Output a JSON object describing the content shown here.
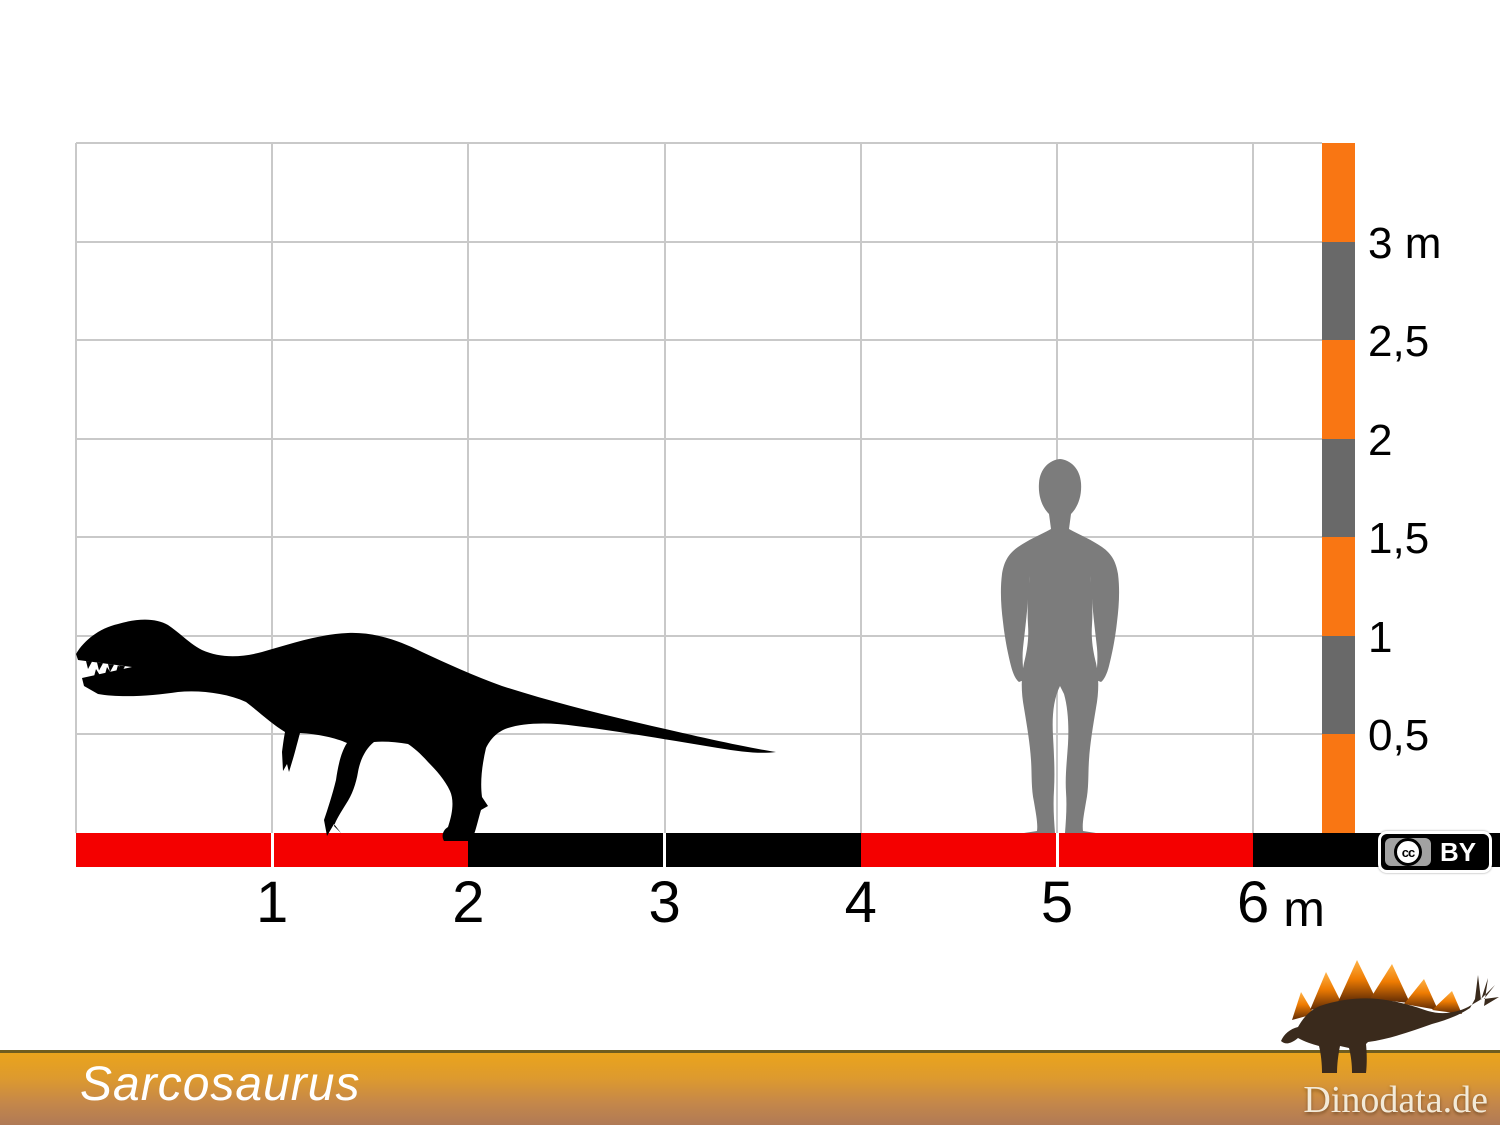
{
  "chart": {
    "x_axis": {
      "tick_values": [
        1,
        2,
        3,
        4,
        5,
        6
      ],
      "tick_labels": [
        "1",
        "2",
        "3",
        "4",
        "5",
        "6"
      ],
      "unit_label": "m"
    },
    "y_axis": {
      "tick_values": [
        3,
        2.5,
        2,
        1.5,
        1,
        0.5
      ],
      "tick_labels": [
        "3 m",
        "2,5",
        "2",
        "1,5",
        "1",
        "0,5"
      ]
    },
    "grid": {
      "x_interval_m": 1,
      "y_interval_m": 0.5,
      "x_range_m": [
        0,
        6.35
      ],
      "y_range_m": [
        0,
        3.5
      ],
      "gridline_color": "#c9c9c9"
    }
  },
  "scale_bars": {
    "horizontal": {
      "segments": [
        {
          "from_m": 0,
          "to_m": 1,
          "color": "#f40000"
        },
        {
          "from_m": 1,
          "to_m": 2,
          "color": "#f40000"
        },
        {
          "from_m": 2,
          "to_m": 3,
          "color": "#000000"
        },
        {
          "from_m": 3,
          "to_m": 4,
          "color": "#000000"
        },
        {
          "from_m": 4,
          "to_m": 5,
          "color": "#f40000"
        },
        {
          "from_m": 5,
          "to_m": 6,
          "color": "#f40000"
        },
        {
          "from_m": 6,
          "to_m": 7.26,
          "color": "#000000"
        }
      ],
      "divider_marks_m": [
        1,
        3,
        5
      ]
    },
    "vertical": {
      "segments": [
        {
          "from_m": 0,
          "to_m": 0.5,
          "color": "#f97613"
        },
        {
          "from_m": 0.5,
          "to_m": 1,
          "color": "#696969"
        },
        {
          "from_m": 1,
          "to_m": 1.5,
          "color": "#f97613"
        },
        {
          "from_m": 1.5,
          "to_m": 2,
          "color": "#696969"
        },
        {
          "from_m": 2,
          "to_m": 2.5,
          "color": "#f97613"
        },
        {
          "from_m": 2.5,
          "to_m": 3,
          "color": "#696969"
        },
        {
          "from_m": 3,
          "to_m": 3.5,
          "color": "#f97613"
        }
      ]
    }
  },
  "figures": {
    "dinosaur": {
      "icon": "sarcosaurus-silhouette",
      "color": "#000000",
      "approx_length_m": 3.6
    },
    "human": {
      "icon": "human-silhouette",
      "color": "#7c7c7c",
      "approx_height_m": 1.9
    }
  },
  "license_badge": {
    "cc_label": "cc",
    "by_label": "BY"
  },
  "footer": {
    "title": "Sarcosaurus",
    "site": "Dinodata.de",
    "logo_icon": "stegosaurus-logo"
  },
  "colors": {
    "bar_red": "#f40000",
    "bar_black": "#000000",
    "bar_orange": "#f97613",
    "bar_gray": "#696969",
    "gridline": "#c9c9c9",
    "human_gray": "#7c7c7c",
    "banner_top": "#eaa41c",
    "banner_bottom": "#b07a56",
    "logo_body": "#3a2a1c"
  }
}
